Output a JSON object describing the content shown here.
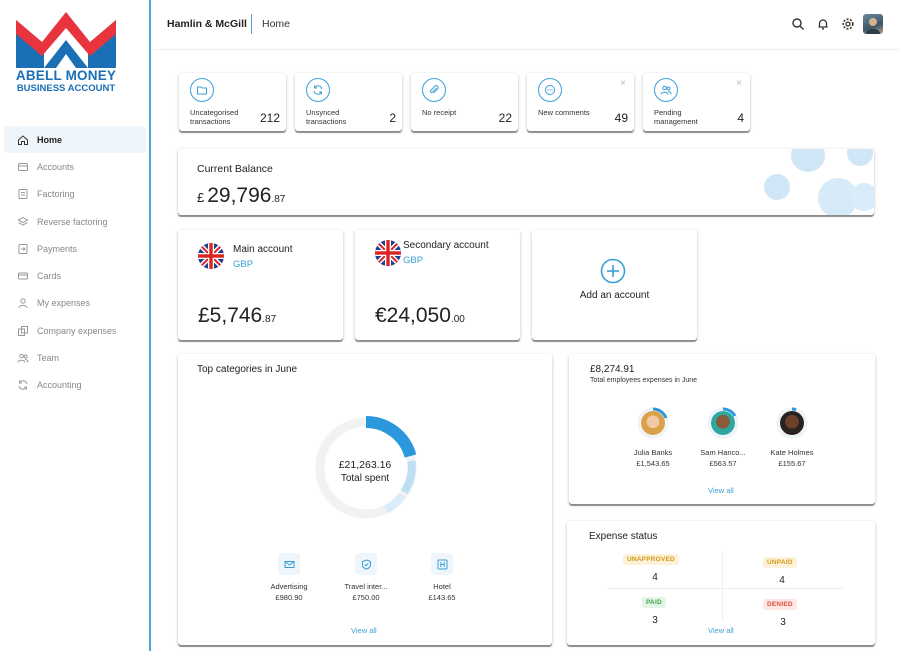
{
  "brand": {
    "line1": "ABELL MONEY",
    "line2": "BUSINESS ACCOUNT"
  },
  "header": {
    "company": "Hamlin & McGill",
    "breadcrumb": "Home"
  },
  "sidebar": {
    "items": [
      {
        "label": "Home",
        "icon": "home-icon"
      },
      {
        "label": "Accounts",
        "icon": "accounts-icon"
      },
      {
        "label": "Factoring",
        "icon": "factoring-icon"
      },
      {
        "label": "Reverse factoring",
        "icon": "layers-icon"
      },
      {
        "label": "Payments",
        "icon": "payments-icon"
      },
      {
        "label": "Cards",
        "icon": "card-icon"
      },
      {
        "label": "My expenses",
        "icon": "user-icon"
      },
      {
        "label": "Company expenses",
        "icon": "company-icon"
      },
      {
        "label": "Team",
        "icon": "team-icon"
      },
      {
        "label": "Accounting",
        "icon": "sync-icon"
      }
    ]
  },
  "stats": [
    {
      "label": "Uncategorised transactions",
      "value": "212",
      "icon": "folder-icon"
    },
    {
      "label": "Unsynced transactions",
      "value": "2",
      "icon": "sync-icon"
    },
    {
      "label": "No receipt",
      "value": "22",
      "icon": "paperclip-icon"
    },
    {
      "label": "New comments",
      "value": "49",
      "icon": "comment-icon",
      "close": "×"
    },
    {
      "label": "Pending management",
      "value": "4",
      "icon": "users-icon",
      "close": "×"
    }
  ],
  "balance": {
    "title": "Current Balance",
    "currency": "£",
    "whole": "29,796",
    "decimal": ".87"
  },
  "accounts": [
    {
      "name": "Main account",
      "currency": "GBP",
      "whole": "£5,746",
      "decimal": ".87"
    },
    {
      "name": "Secondary account",
      "currency": "GBP",
      "whole": "€24,050",
      "decimal": ".00"
    }
  ],
  "add_account": {
    "label": "Add an account"
  },
  "top_categories": {
    "title": "Top categories in June",
    "total": "£21,263.16",
    "total_label": "Total spent",
    "items": [
      {
        "name": "Advertising",
        "value": "£980.90",
        "icon": "mail-icon"
      },
      {
        "name": "Travel inter...",
        "value": "£750.00",
        "icon": "shield-icon"
      },
      {
        "name": "Hotel",
        "value": "£143.65",
        "icon": "hotel-icon"
      }
    ],
    "view_all": "View all"
  },
  "employees": {
    "amount": "£8,274.91",
    "subtitle": "Total employees expenses in June",
    "people": [
      {
        "name": "Julia Banks",
        "value": "£1,543.65"
      },
      {
        "name": "Sam Hanco...",
        "value": "£563.57"
      },
      {
        "name": "Kate Holmes",
        "value": "£155.67"
      }
    ],
    "view_all": "View all"
  },
  "expense_status": {
    "title": "Expense status",
    "unapproved_label": "UNAPPROVED",
    "unapproved_count": "4",
    "unpaid_label": "UNPAID",
    "unpaid_count": "4",
    "paid_label": "PAID",
    "paid_count": "3",
    "denied_label": "DENIED",
    "denied_count": "3",
    "view_all": "View all"
  },
  "colors": {
    "accent": "#3a9fd6",
    "logo_red": "#e8343c",
    "logo_blue": "#1a6fb5"
  }
}
